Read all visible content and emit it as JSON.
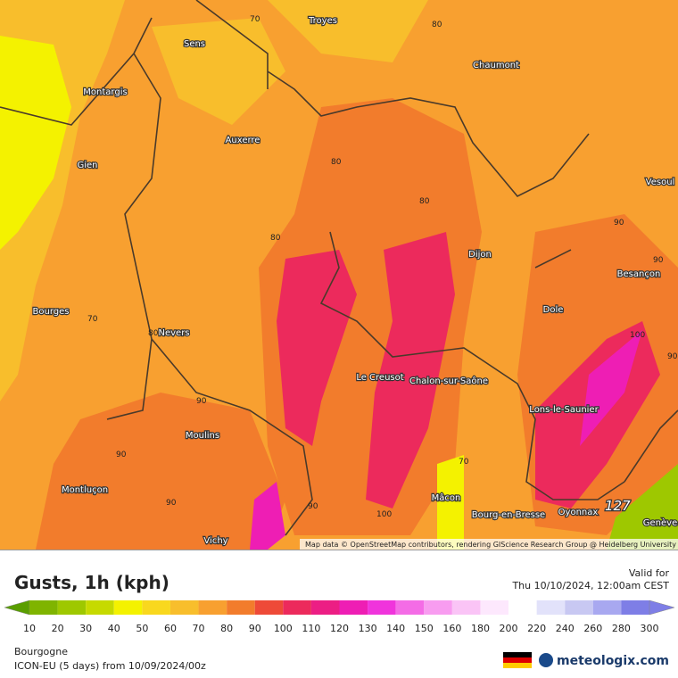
{
  "map": {
    "cities": [
      "Troyes",
      "Sens",
      "Montargis",
      "Chaumont",
      "Auxerre",
      "Gien",
      "Vesoul",
      "Dijon",
      "Bourges",
      "Nevers",
      "Besançon",
      "Dole",
      "Le Creusot",
      "Chalon-sur-Saône",
      "Lons-le-Saunier",
      "Moulins",
      "Montluçon",
      "Mâcon",
      "Bourg-en-Bresse",
      "Oyonnax",
      "Vichy",
      "Genève"
    ],
    "contours": [
      "70",
      "80",
      "80",
      "80",
      "80",
      "70",
      "80",
      "90",
      "90",
      "90",
      "90",
      "90",
      "100",
      "90",
      "70",
      "100",
      "127",
      "90"
    ],
    "attribution": "Map data © OpenStreetMap contributors, rendering GIScience Research Group @ Heidelberg University"
  },
  "legend": {
    "title": "Gusts, 1h (kph)",
    "valid_label": "Valid for",
    "valid_time": "Thu 10/10/2024, 12:00am CEST",
    "stops": [
      {
        "value": 10,
        "color": "#5a9e00"
      },
      {
        "value": 20,
        "color": "#7fb400"
      },
      {
        "value": 30,
        "color": "#9ec800"
      },
      {
        "value": 40,
        "color": "#c6da00"
      },
      {
        "value": 50,
        "color": "#f4f200"
      },
      {
        "value": 60,
        "color": "#f9d81e"
      },
      {
        "value": 70,
        "color": "#f8be2c"
      },
      {
        "value": 80,
        "color": "#f8a030"
      },
      {
        "value": 90,
        "color": "#f27c2c"
      },
      {
        "value": 100,
        "color": "#ee4a38"
      },
      {
        "value": 110,
        "color": "#ec2a5c"
      },
      {
        "value": 120,
        "color": "#ec1e84"
      },
      {
        "value": 130,
        "color": "#ee1eb4"
      },
      {
        "value": 140,
        "color": "#f034dc"
      },
      {
        "value": 150,
        "color": "#f46ce6"
      },
      {
        "value": 160,
        "color": "#f89cf0"
      },
      {
        "value": 180,
        "color": "#fac4f6"
      },
      {
        "value": 200,
        "color": "#fde8fd"
      },
      {
        "value": 220,
        "color": "#ffffff"
      },
      {
        "value": 240,
        "color": "#e2e2fa"
      },
      {
        "value": 260,
        "color": "#c8c8f2"
      },
      {
        "value": 280,
        "color": "#a8a8f0"
      },
      {
        "value": 300,
        "color": "#7e7ee6"
      }
    ],
    "region": "Bourgogne",
    "model": "ICON-EU (5 days) from 10/09/2024/00z",
    "brand": "meteologix.com"
  }
}
